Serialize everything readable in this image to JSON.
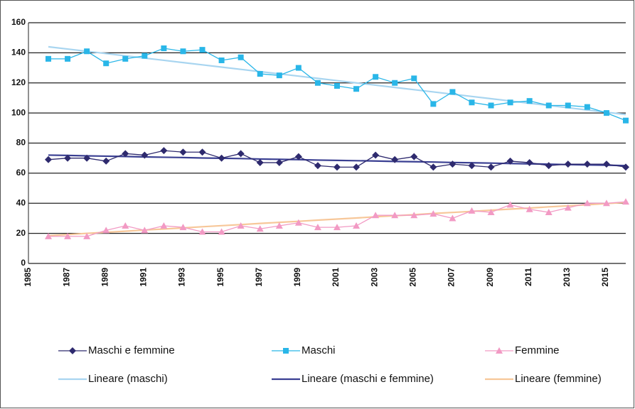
{
  "chart_data": {
    "type": "line",
    "categories": [
      "1985",
      null,
      "1987",
      null,
      "1989",
      null,
      "1991",
      null,
      "1993",
      null,
      "1995",
      null,
      "1997",
      null,
      "1999",
      null,
      "2001",
      null,
      "2003",
      null,
      "2005",
      null,
      "2007",
      null,
      "2009",
      null,
      "2011",
      null,
      "2013",
      null,
      "2015"
    ],
    "ylim": [
      0,
      160
    ],
    "yticks": [
      0,
      20,
      40,
      60,
      80,
      100,
      120,
      140,
      160
    ],
    "grid": true,
    "series": [
      {
        "name": "Maschi e femmine",
        "color": "#2e2a6e",
        "marker": "diamond",
        "values": [
          69,
          70,
          70,
          68,
          73,
          72,
          75,
          74,
          74,
          70,
          73,
          67,
          67,
          71,
          65,
          64,
          64,
          72,
          69,
          71,
          64,
          66,
          65,
          64,
          68,
          67,
          65,
          66,
          66,
          66,
          64
        ]
      },
      {
        "name": "Maschi",
        "color": "#29b6e8",
        "marker": "square",
        "values": [
          136,
          136,
          141,
          133,
          136,
          138,
          143,
          141,
          142,
          135,
          137,
          126,
          125,
          130,
          120,
          118,
          116,
          124,
          120,
          123,
          106,
          114,
          107,
          105,
          107,
          108,
          105,
          105,
          104,
          100,
          95
        ]
      },
      {
        "name": "Femmine",
        "color": "#f29ac4",
        "marker": "triangle",
        "values": [
          18,
          18,
          18,
          22,
          25,
          22,
          25,
          24,
          21,
          21,
          25,
          23,
          25,
          27,
          24,
          24,
          25,
          32,
          32,
          32,
          33,
          30,
          35,
          34,
          39,
          36,
          34,
          37,
          40,
          40,
          41
        ]
      },
      {
        "name": "Lineare (maschi)",
        "color": "#a8d5f0",
        "marker": "none",
        "values": [
          144,
          142.5,
          141,
          139.5,
          138,
          136.5,
          135,
          133.5,
          132,
          130.5,
          129,
          127.5,
          126,
          124.5,
          123,
          121.5,
          120,
          118.5,
          117,
          115.5,
          114,
          112.5,
          111,
          109.5,
          108,
          106.5,
          105,
          103.5,
          102,
          100.5,
          99
        ]
      },
      {
        "name": "Lineare (maschi e femmine)",
        "color": "#3a3f92",
        "marker": "none",
        "values": [
          72,
          71.8,
          71.5,
          71.3,
          71.1,
          70.8,
          70.6,
          70.4,
          70.1,
          69.9,
          69.7,
          69.4,
          69.2,
          69,
          68.7,
          68.5,
          68.3,
          68.1,
          67.8,
          67.6,
          67.4,
          67.1,
          66.9,
          66.7,
          66.4,
          66.2,
          66,
          65.7,
          65.5,
          65.3,
          65
        ]
      },
      {
        "name": "Lineare (femmine)",
        "color": "#f7c799",
        "marker": "none",
        "values": [
          18.5,
          19.2,
          20,
          20.7,
          21.4,
          22.2,
          22.9,
          23.6,
          24.4,
          25.1,
          25.8,
          26.6,
          27.3,
          28,
          28.8,
          29.5,
          30.2,
          31,
          31.7,
          32.4,
          33.2,
          33.9,
          34.6,
          35.4,
          36.1,
          36.8,
          37.6,
          38.3,
          39,
          39.8,
          40.5
        ]
      }
    ]
  }
}
